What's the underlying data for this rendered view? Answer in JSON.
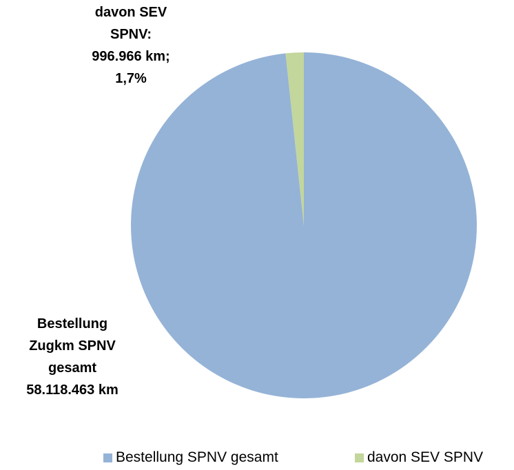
{
  "chart_data": {
    "type": "pie",
    "categories": [
      "Bestellung SPNV gesamt",
      "davon SEV SPNV"
    ],
    "values": [
      58118463,
      996966
    ],
    "value_labels": [
      "Bestellung\nZugkm SPNV\ngesamt\n58.118.463 km",
      "davon SEV\nSPNV:\n996.966 km;\n1,7%"
    ],
    "colors": [
      "#95b3d7",
      "#c3d69b"
    ],
    "legend": "bottom"
  }
}
